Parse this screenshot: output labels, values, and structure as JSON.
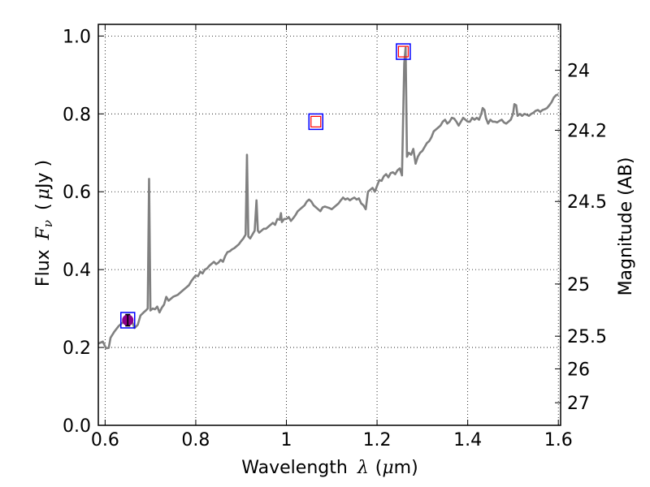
{
  "chart_data": {
    "type": "line",
    "xlabel_text": "Wavelength",
    "xlabel_symbol": "λ",
    "xlabel_unit_open": "(",
    "xlabel_unit_mu": "μ",
    "xlabel_unit_rest": "m)",
    "ylabel_text": "Flux",
    "ylabel_symbol": "F",
    "ylabel_sub": "ν",
    "ylabel_unit_open": "(",
    "ylabel_unit_mu": "μ",
    "ylabel_unit_rest": "Jy )",
    "y2label": "Magnitude (AB)",
    "xlim": [
      0.585,
      1.605
    ],
    "ylim": [
      0.0,
      1.03
    ],
    "grid": true,
    "x_ticks": [
      {
        "value": 0.6,
        "label": "0.6"
      },
      {
        "value": 0.8,
        "label": "0.8"
      },
      {
        "value": 1.0,
        "label": "1"
      },
      {
        "value": 1.2,
        "label": "1.2"
      },
      {
        "value": 1.4,
        "label": "1.4"
      },
      {
        "value": 1.6,
        "label": "1.6"
      }
    ],
    "y_ticks": [
      {
        "value": 0.0,
        "label": "0.0"
      },
      {
        "value": 0.2,
        "label": "0.2"
      },
      {
        "value": 0.4,
        "label": "0.4"
      },
      {
        "value": 0.6,
        "label": "0.6"
      },
      {
        "value": 0.8,
        "label": "0.8"
      },
      {
        "value": 1.0,
        "label": "1.0"
      }
    ],
    "y2_ticks": [
      {
        "flux": 0.912,
        "label": "24"
      },
      {
        "flux": 0.758,
        "label": "24.2"
      },
      {
        "flux": 0.575,
        "label": "24.5"
      },
      {
        "flux": 0.363,
        "label": "25"
      },
      {
        "flux": 0.229,
        "label": "25.5"
      },
      {
        "flux": 0.145,
        "label": "26"
      },
      {
        "flux": 0.058,
        "label": "27"
      }
    ],
    "series": [
      {
        "color": "#808080",
        "points": [
          [
            0.585,
            0.21
          ],
          [
            0.595,
            0.215
          ],
          [
            0.602,
            0.198
          ],
          [
            0.608,
            0.199
          ],
          [
            0.612,
            0.225
          ],
          [
            0.62,
            0.24
          ],
          [
            0.63,
            0.255
          ],
          [
            0.64,
            0.265
          ],
          [
            0.65,
            0.27
          ],
          [
            0.66,
            0.265
          ],
          [
            0.665,
            0.25
          ],
          [
            0.672,
            0.258
          ],
          [
            0.678,
            0.282
          ],
          [
            0.685,
            0.29
          ],
          [
            0.69,
            0.295
          ],
          [
            0.694,
            0.3
          ],
          [
            0.697,
            0.633
          ],
          [
            0.7,
            0.295
          ],
          [
            0.705,
            0.3
          ],
          [
            0.71,
            0.298
          ],
          [
            0.715,
            0.305
          ],
          [
            0.72,
            0.29
          ],
          [
            0.725,
            0.302
          ],
          [
            0.73,
            0.31
          ],
          [
            0.735,
            0.33
          ],
          [
            0.74,
            0.32
          ],
          [
            0.75,
            0.33
          ],
          [
            0.76,
            0.335
          ],
          [
            0.77,
            0.345
          ],
          [
            0.78,
            0.355
          ],
          [
            0.785,
            0.36
          ],
          [
            0.79,
            0.37
          ],
          [
            0.795,
            0.378
          ],
          [
            0.8,
            0.385
          ],
          [
            0.805,
            0.383
          ],
          [
            0.81,
            0.395
          ],
          [
            0.815,
            0.39
          ],
          [
            0.82,
            0.4
          ],
          [
            0.825,
            0.403
          ],
          [
            0.83,
            0.41
          ],
          [
            0.835,
            0.415
          ],
          [
            0.84,
            0.42
          ],
          [
            0.845,
            0.414
          ],
          [
            0.85,
            0.418
          ],
          [
            0.855,
            0.425
          ],
          [
            0.86,
            0.42
          ],
          [
            0.865,
            0.435
          ],
          [
            0.87,
            0.445
          ],
          [
            0.875,
            0.447
          ],
          [
            0.88,
            0.452
          ],
          [
            0.885,
            0.455
          ],
          [
            0.89,
            0.46
          ],
          [
            0.895,
            0.465
          ],
          [
            0.9,
            0.473
          ],
          [
            0.905,
            0.48
          ],
          [
            0.91,
            0.49
          ],
          [
            0.913,
            0.695
          ],
          [
            0.916,
            0.485
          ],
          [
            0.92,
            0.48
          ],
          [
            0.925,
            0.49
          ],
          [
            0.93,
            0.5
          ],
          [
            0.934,
            0.578
          ],
          [
            0.937,
            0.5
          ],
          [
            0.94,
            0.495
          ],
          [
            0.945,
            0.5
          ],
          [
            0.95,
            0.505
          ],
          [
            0.955,
            0.505
          ],
          [
            0.96,
            0.51
          ],
          [
            0.965,
            0.515
          ],
          [
            0.97,
            0.52
          ],
          [
            0.975,
            0.515
          ],
          [
            0.98,
            0.53
          ],
          [
            0.985,
            0.528
          ],
          [
            0.988,
            0.545
          ],
          [
            0.99,
            0.522
          ],
          [
            0.995,
            0.53
          ],
          [
            1.0,
            0.53
          ],
          [
            1.005,
            0.535
          ],
          [
            1.01,
            0.525
          ],
          [
            1.015,
            0.532
          ],
          [
            1.02,
            0.54
          ],
          [
            1.025,
            0.55
          ],
          [
            1.03,
            0.555
          ],
          [
            1.035,
            0.56
          ],
          [
            1.04,
            0.565
          ],
          [
            1.045,
            0.575
          ],
          [
            1.05,
            0.58
          ],
          [
            1.055,
            0.575
          ],
          [
            1.06,
            0.565
          ],
          [
            1.065,
            0.56
          ],
          [
            1.07,
            0.555
          ],
          [
            1.075,
            0.55
          ],
          [
            1.08,
            0.56
          ],
          [
            1.085,
            0.562
          ],
          [
            1.09,
            0.56
          ],
          [
            1.095,
            0.558
          ],
          [
            1.1,
            0.555
          ],
          [
            1.105,
            0.56
          ],
          [
            1.11,
            0.565
          ],
          [
            1.115,
            0.57
          ],
          [
            1.12,
            0.578
          ],
          [
            1.125,
            0.585
          ],
          [
            1.13,
            0.58
          ],
          [
            1.135,
            0.583
          ],
          [
            1.14,
            0.578
          ],
          [
            1.145,
            0.582
          ],
          [
            1.15,
            0.585
          ],
          [
            1.155,
            0.58
          ],
          [
            1.16,
            0.583
          ],
          [
            1.165,
            0.57
          ],
          [
            1.17,
            0.565
          ],
          [
            1.175,
            0.555
          ],
          [
            1.18,
            0.6
          ],
          [
            1.185,
            0.605
          ],
          [
            1.19,
            0.61
          ],
          [
            1.195,
            0.6
          ],
          [
            1.2,
            0.615
          ],
          [
            1.205,
            0.63
          ],
          [
            1.21,
            0.628
          ],
          [
            1.215,
            0.64
          ],
          [
            1.22,
            0.645
          ],
          [
            1.225,
            0.637
          ],
          [
            1.23,
            0.648
          ],
          [
            1.235,
            0.65
          ],
          [
            1.24,
            0.645
          ],
          [
            1.245,
            0.655
          ],
          [
            1.25,
            0.66
          ],
          [
            1.255,
            0.642
          ],
          [
            1.26,
            0.93
          ],
          [
            1.263,
            0.97
          ],
          [
            1.266,
            0.69
          ],
          [
            1.27,
            0.7
          ],
          [
            1.275,
            0.695
          ],
          [
            1.28,
            0.71
          ],
          [
            1.285,
            0.672
          ],
          [
            1.29,
            0.69
          ],
          [
            1.295,
            0.7
          ],
          [
            1.3,
            0.705
          ],
          [
            1.305,
            0.715
          ],
          [
            1.31,
            0.725
          ],
          [
            1.315,
            0.73
          ],
          [
            1.32,
            0.74
          ],
          [
            1.325,
            0.755
          ],
          [
            1.33,
            0.76
          ],
          [
            1.335,
            0.765
          ],
          [
            1.34,
            0.77
          ],
          [
            1.345,
            0.78
          ],
          [
            1.35,
            0.785
          ],
          [
            1.355,
            0.775
          ],
          [
            1.36,
            0.78
          ],
          [
            1.365,
            0.79
          ],
          [
            1.37,
            0.788
          ],
          [
            1.375,
            0.78
          ],
          [
            1.38,
            0.77
          ],
          [
            1.385,
            0.78
          ],
          [
            1.39,
            0.79
          ],
          [
            1.395,
            0.785
          ],
          [
            1.4,
            0.78
          ],
          [
            1.405,
            0.78
          ],
          [
            1.41,
            0.79
          ],
          [
            1.415,
            0.785
          ],
          [
            1.42,
            0.79
          ],
          [
            1.425,
            0.785
          ],
          [
            1.43,
            0.8
          ],
          [
            1.433,
            0.815
          ],
          [
            1.437,
            0.81
          ],
          [
            1.44,
            0.79
          ],
          [
            1.445,
            0.775
          ],
          [
            1.45,
            0.785
          ],
          [
            1.455,
            0.78
          ],
          [
            1.46,
            0.78
          ],
          [
            1.465,
            0.778
          ],
          [
            1.47,
            0.782
          ],
          [
            1.475,
            0.785
          ],
          [
            1.48,
            0.778
          ],
          [
            1.485,
            0.775
          ],
          [
            1.49,
            0.78
          ],
          [
            1.495,
            0.785
          ],
          [
            1.5,
            0.8
          ],
          [
            1.503,
            0.825
          ],
          [
            1.507,
            0.822
          ],
          [
            1.51,
            0.795
          ],
          [
            1.515,
            0.8
          ],
          [
            1.52,
            0.795
          ],
          [
            1.525,
            0.8
          ],
          [
            1.53,
            0.798
          ],
          [
            1.535,
            0.795
          ],
          [
            1.54,
            0.8
          ],
          [
            1.545,
            0.803
          ],
          [
            1.55,
            0.808
          ],
          [
            1.555,
            0.81
          ],
          [
            1.56,
            0.805
          ],
          [
            1.565,
            0.81
          ],
          [
            1.57,
            0.812
          ],
          [
            1.575,
            0.815
          ],
          [
            1.58,
            0.822
          ],
          [
            1.585,
            0.83
          ],
          [
            1.59,
            0.842
          ],
          [
            1.595,
            0.848
          ],
          [
            1.6,
            0.85
          ]
        ]
      }
    ],
    "photometry_points": [
      {
        "x": 1.065,
        "y": 0.78,
        "outer_color": "#0000ff",
        "inner_color": "#ff0000"
      },
      {
        "x": 1.258,
        "y": 0.96,
        "outer_color": "#0000ff",
        "inner_color": "#ff0000"
      },
      {
        "x": 0.65,
        "y": 0.27,
        "outer_color": "#0000ff",
        "inner_color": "#ff0000",
        "marker": "circle",
        "marker_color": "#8b008b"
      }
    ]
  }
}
